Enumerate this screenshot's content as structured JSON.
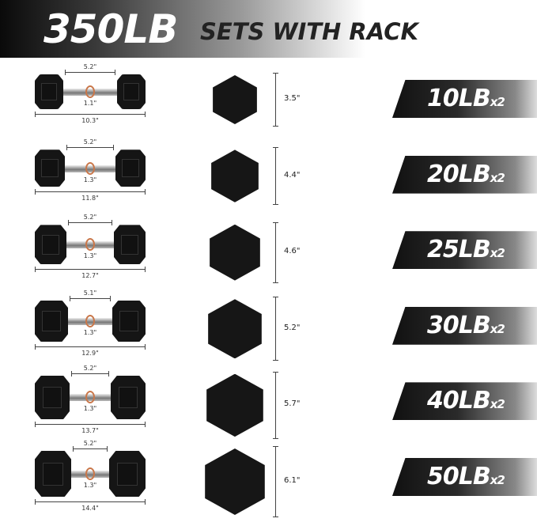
{
  "header": {
    "weight": "350LB",
    "subtitle": "SETS WITH RACK"
  },
  "rows": [
    {
      "handle": "5.2\"",
      "grip": "1.1\"",
      "length": "10.3\"",
      "height": "3.5\"",
      "weight": "10LB",
      "qty": "x2"
    },
    {
      "handle": "5.2\"",
      "grip": "1.3\"",
      "length": "11.8\"",
      "height": "4.4\"",
      "weight": "20LB",
      "qty": "x2"
    },
    {
      "handle": "5.2\"",
      "grip": "1.3\"",
      "length": "12.7\"",
      "height": "4.6\"",
      "weight": "25LB",
      "qty": "x2"
    },
    {
      "handle": "5.1\"",
      "grip": "1.3\"",
      "length": "12.9\"",
      "height": "5.2\"",
      "weight": "30LB",
      "qty": "x2"
    },
    {
      "handle": "5.2\"",
      "grip": "1.3\"",
      "length": "13.7\"",
      "height": "5.7\"",
      "weight": "40LB",
      "qty": "x2"
    },
    {
      "handle": "5.2\"",
      "grip": "1.3\"",
      "length": "14.4\"",
      "height": "6.1\"",
      "weight": "50LB",
      "qty": "x2"
    }
  ]
}
